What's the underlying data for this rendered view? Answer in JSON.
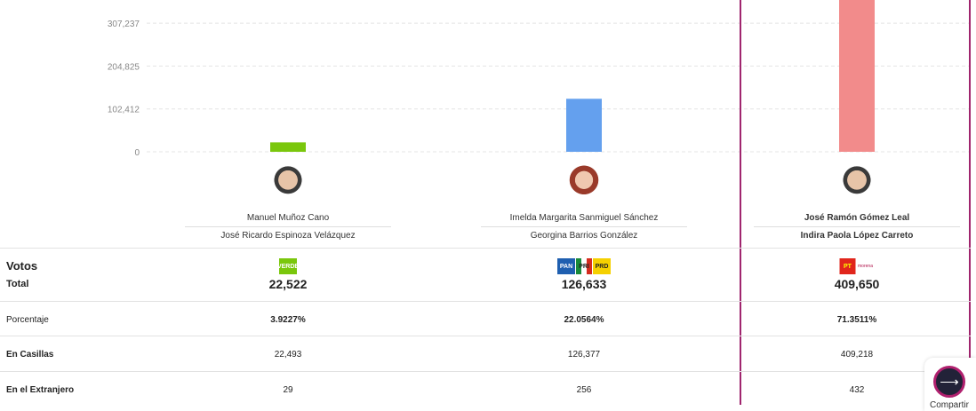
{
  "chart_data": {
    "type": "bar",
    "categories": [
      "Manuel Muñoz Cano",
      "Imelda Margarita Sanmiguel Sánchez",
      "José Ramón Gómez Leal"
    ],
    "values": [
      22522,
      126633,
      409650
    ],
    "colors": [
      "#7ac70c",
      "#64a0ee",
      "#f28b8b"
    ],
    "y_ticks": [
      "0",
      "102,412",
      "204,825",
      "307,237"
    ],
    "y_tick_values": [
      0,
      102412,
      204825,
      307237
    ],
    "grid": true
  },
  "candidates": [
    {
      "name": "Manuel Muñoz Cano",
      "suplente": "José Ricardo Espinoza Velázquez",
      "parties": [
        "VERDE"
      ],
      "total": "22,522",
      "porcentaje": "3.9227%",
      "casillas": "22,493",
      "extranjero": "29"
    },
    {
      "name": "Imelda Margarita Sanmiguel Sánchez",
      "suplente": "Georgina Barrios González",
      "parties": [
        "PAN",
        "PRI",
        "PRD"
      ],
      "total": "126,633",
      "porcentaje": "22.0564%",
      "casillas": "126,377",
      "extranjero": "256"
    },
    {
      "name": "José Ramón Gómez Leal",
      "suplente": "Indira Paola López Carreto",
      "parties": [
        "PT",
        "morena"
      ],
      "total": "409,650",
      "porcentaje": "71.3511%",
      "casillas": "409,218",
      "extranjero": "432"
    }
  ],
  "rows": {
    "votos": "Votos",
    "total": "Total",
    "porcentaje": "Porcentaje",
    "casillas": "En Casillas",
    "extranjero": "En el Extranjero"
  },
  "share": {
    "label": "Compartir"
  },
  "highlight_color": "#a0256e"
}
